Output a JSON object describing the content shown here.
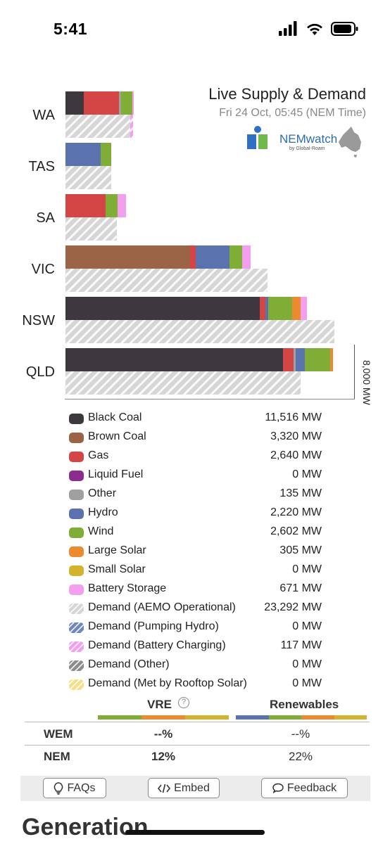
{
  "status_bar": {
    "time": "5:41"
  },
  "header": {
    "title": "Live Supply & Demand",
    "subtitle": "Fri 24 Oct, 05:45 (NEM Time)",
    "logo_text": "NEMwatch",
    "logo_sub": "by Global-Roam"
  },
  "colors": {
    "Black Coal": "#3d383d",
    "Brown Coal": "#9b6447",
    "Gas": "#d44646",
    "Liquid Fuel": "#8b2d8f",
    "Other": "#a0a0a0",
    "Hydro": "#5a72ae",
    "Wind": "#7fad35",
    "Large Solar": "#ec8a30",
    "Small Solar": "#d4b32c",
    "Battery Storage": "#f49ef0",
    "Demand (AEMO Operational)": "#d6d6d6",
    "Demand (Pumping Hydro)": "#6f87bf",
    "Demand (Battery Charging)": "#f49ef0",
    "Demand (Other)": "#8c8c8c",
    "Demand (Met by Rooftop Solar)": "#f5e08a"
  },
  "chart_data": {
    "type": "bar",
    "orientation": "horizontal-stacked",
    "axis_max_label": "8,000 MW",
    "xlim": [
      0,
      8000
    ],
    "regions": [
      {
        "name": "WA",
        "supply": [
          [
            "Black Coal",
            550
          ],
          [
            "Gas",
            1050
          ],
          [
            "Other",
            60
          ],
          [
            "Wind",
            320
          ],
          [
            "Battery Storage",
            60
          ]
        ],
        "demand": [
          [
            "Demand (AEMO Operational)",
            1930
          ],
          [
            "Demand (Battery Charging)",
            80
          ]
        ]
      },
      {
        "name": "TAS",
        "supply": [
          [
            "Hydro",
            1050
          ],
          [
            "Wind",
            320
          ]
        ],
        "demand": [
          [
            "Demand (AEMO Operational)",
            1370
          ]
        ]
      },
      {
        "name": "SA",
        "supply": [
          [
            "Gas",
            1190
          ],
          [
            "Wind",
            360
          ],
          [
            "Battery Storage",
            250
          ]
        ],
        "demand": [
          [
            "Demand (AEMO Operational)",
            1530
          ]
        ]
      },
      {
        "name": "VIC",
        "supply": [
          [
            "Brown Coal",
            3710
          ],
          [
            "Gas",
            160
          ],
          [
            "Hydro",
            1000
          ],
          [
            "Wind",
            380
          ],
          [
            "Battery Storage",
            250
          ]
        ],
        "demand": [
          [
            "Demand (AEMO Operational)",
            6020
          ]
        ]
      },
      {
        "name": "NSW",
        "supply": [
          [
            "Black Coal",
            5780
          ],
          [
            "Gas",
            160
          ],
          [
            "Hydro",
            100
          ],
          [
            "Wind",
            700
          ],
          [
            "Large Solar",
            260
          ],
          [
            "Battery Storage",
            180
          ]
        ],
        "demand": [
          [
            "Demand (AEMO Operational)",
            8000
          ]
        ]
      },
      {
        "name": "QLD",
        "supply": [
          [
            "Black Coal",
            6480
          ],
          [
            "Gas",
            300
          ],
          [
            "Other",
            75
          ],
          [
            "Hydro",
            260
          ],
          [
            "Wind",
            760
          ],
          [
            "Large Solar",
            75
          ]
        ],
        "demand": [
          [
            "Demand (AEMO Operational)",
            7000
          ]
        ]
      }
    ]
  },
  "legend": [
    {
      "label": "Black Coal",
      "value": "11,516 MW"
    },
    {
      "label": "Brown Coal",
      "value": "3,320 MW"
    },
    {
      "label": "Gas",
      "value": "2,640 MW"
    },
    {
      "label": "Liquid Fuel",
      "value": "0 MW"
    },
    {
      "label": "Other",
      "value": "135 MW"
    },
    {
      "label": "Hydro",
      "value": "2,220 MW"
    },
    {
      "label": "Wind",
      "value": "2,602 MW"
    },
    {
      "label": "Large Solar",
      "value": "305 MW"
    },
    {
      "label": "Small Solar",
      "value": "0 MW"
    },
    {
      "label": "Battery Storage",
      "value": "671 MW"
    },
    {
      "label": "Demand (AEMO Operational)",
      "value": "23,292 MW",
      "hatch": true
    },
    {
      "label": "Demand (Pumping Hydro)",
      "value": "0 MW",
      "hatch": true
    },
    {
      "label": "Demand (Battery Charging)",
      "value": "117 MW",
      "hatch": true
    },
    {
      "label": "Demand (Other)",
      "value": "0 MW",
      "hatch": true
    },
    {
      "label": "Demand (Met by Rooftop Solar)",
      "value": "0 MW",
      "hatch": true
    }
  ],
  "summary": {
    "vre_head": "VRE",
    "renewables_head": "Renewables",
    "vre_colors": [
      "#7fad35",
      "#ec8a30",
      "#d4b32c"
    ],
    "renewables_colors": [
      "#5a72ae",
      "#7fad35",
      "#ec8a30",
      "#d4b32c"
    ],
    "rows": [
      {
        "label": "WEM",
        "vre": "--%",
        "renewables": "--%"
      },
      {
        "label": "NEM",
        "vre": "12%",
        "renewables": "22%"
      }
    ]
  },
  "footer": {
    "faqs": "FAQs",
    "embed": "Embed",
    "feedback": "Feedback"
  },
  "section_title": "Generation"
}
